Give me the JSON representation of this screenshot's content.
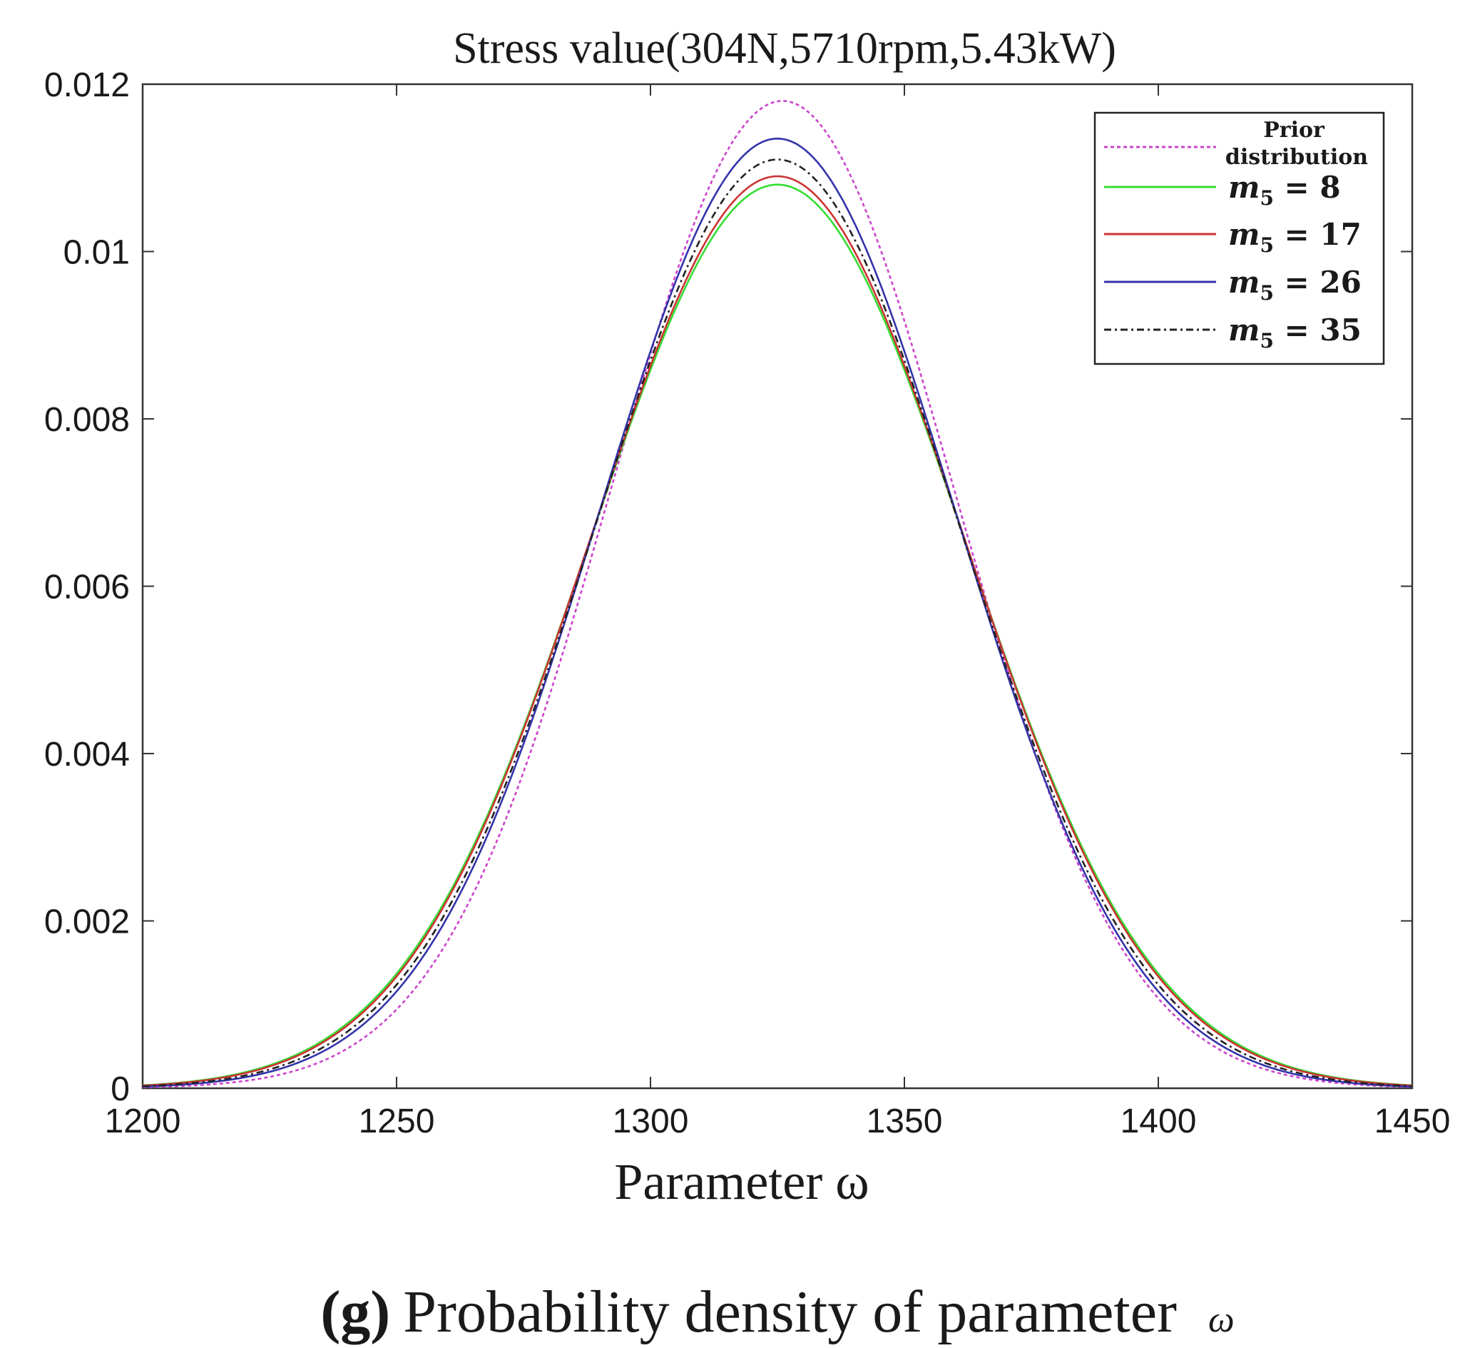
{
  "chart_data": {
    "type": "line",
    "title": "Stress value(304N,5710rpm,5.43kW)",
    "xlabel": "Parameter ω",
    "ylabel": "",
    "xlim": [
      1200,
      1450
    ],
    "ylim": [
      0,
      0.012
    ],
    "xticks": [
      1200,
      1250,
      1300,
      1350,
      1400,
      1450
    ],
    "xtick_labels": [
      "1200",
      "1250",
      "1300",
      "1350",
      "1400",
      "1450"
    ],
    "yticks": [
      0,
      0.002,
      0.004,
      0.006,
      0.008,
      0.01,
      0.012
    ],
    "ytick_labels": [
      "0",
      "0.002",
      "0.004",
      "0.006",
      "0.008",
      "0.01",
      "0.012"
    ],
    "grid": false,
    "legend_position": "top-right",
    "series": [
      {
        "name": "Prior distribution",
        "name_lines": [
          "Prior",
          "distribution"
        ],
        "color": "#cc44cc",
        "style": "dotted",
        "mean": 1326,
        "std": 33.8,
        "peak": 0.0118
      },
      {
        "name": "m5 = 8",
        "label_value": "8",
        "color": "#33dd33",
        "style": "solid",
        "mean": 1325,
        "std": 36.9,
        "peak": 0.0108
      },
      {
        "name": "m5 = 17",
        "label_value": "17",
        "color": "#cc3333",
        "style": "solid",
        "mean": 1325,
        "std": 36.6,
        "peak": 0.0109
      },
      {
        "name": "m5 = 26",
        "label_value": "26",
        "color": "#3333aa",
        "style": "solid",
        "mean": 1325,
        "std": 35.1,
        "peak": 0.01135
      },
      {
        "name": "m5 = 35",
        "label_value": "35",
        "color": "#222222",
        "style": "dashdot",
        "mean": 1325,
        "std": 35.8,
        "peak": 0.0111
      }
    ],
    "legend_symbol": "m",
    "legend_subscript": "5"
  },
  "caption": {
    "label": "(g)",
    "text": "Probability density of parameter",
    "symbol": "ω"
  }
}
